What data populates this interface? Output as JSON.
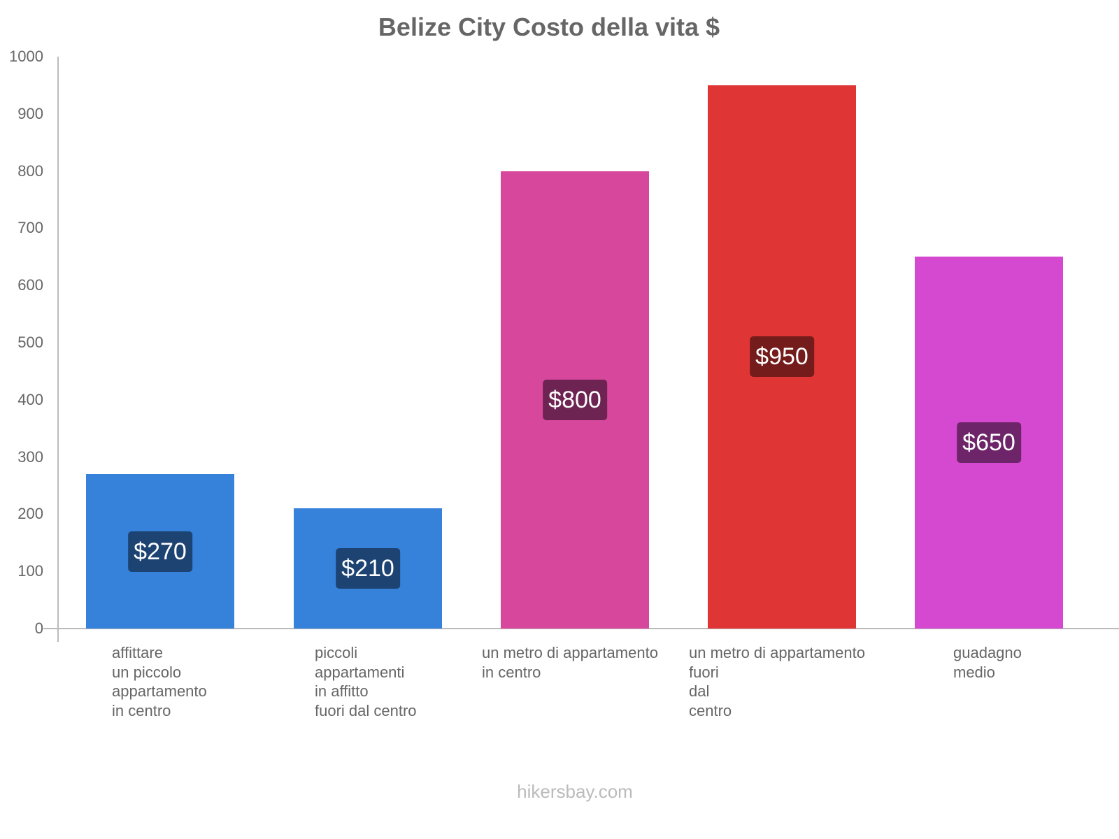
{
  "chart_data": {
    "type": "bar",
    "title": "Belize City Costo della vita $",
    "xlabel": "",
    "ylabel": "",
    "ylim": [
      0,
      1000
    ],
    "yticks": [
      0,
      100,
      200,
      300,
      400,
      500,
      600,
      700,
      800,
      900,
      1000
    ],
    "grid": false,
    "legend": null,
    "categories": [
      "affittare un piccolo appartamento in centro",
      "piccoli appartamenti in affitto fuori dal centro",
      "un metro di appartamento in centro",
      "un metro di appartamento fuori dal centro",
      "guadagno medio"
    ],
    "category_lines": [
      [
        "affittare",
        "un piccolo",
        "appartamento",
        "in centro"
      ],
      [
        "piccoli",
        "appartamenti",
        "in affitto",
        "fuori dal centro"
      ],
      [
        "un metro di appartamento",
        "in centro"
      ],
      [
        "un metro di appartamento",
        "fuori",
        "dal",
        "centro"
      ],
      [
        "guadagno",
        "medio"
      ]
    ],
    "values": [
      270,
      210,
      800,
      950,
      650
    ],
    "value_labels": [
      "$270",
      "$210",
      "$800",
      "$950",
      "$650"
    ],
    "colors": [
      "#3682DB",
      "#3682DB",
      "#D7489C",
      "#E03535",
      "#D548D0"
    ],
    "label_bg_colors": [
      "#1C4372",
      "#1C4372",
      "#6E2452",
      "#741B1B",
      "#6E2468"
    ]
  },
  "header": {
    "title": "Belize City Costo della vita $"
  },
  "axis": {
    "y_ticks": [
      "0",
      "100",
      "200",
      "300",
      "400",
      "500",
      "600",
      "700",
      "800",
      "900",
      "1000"
    ]
  },
  "bars": [
    {
      "label": "$270",
      "x_label": "affittare\nun piccolo\nappartamento\nin centro"
    },
    {
      "label": "$210",
      "x_label": "piccoli\nappartamenti\nin affitto\nfuori dal centro"
    },
    {
      "label": "$800",
      "x_label": "un metro di appartamento\nin centro"
    },
    {
      "label": "$950",
      "x_label": "un metro di appartamento\nfuori\ndal\ncentro"
    },
    {
      "label": "$650",
      "x_label": "guadagno\nmedio"
    }
  ],
  "footer": {
    "watermark": "hikersbay.com"
  }
}
